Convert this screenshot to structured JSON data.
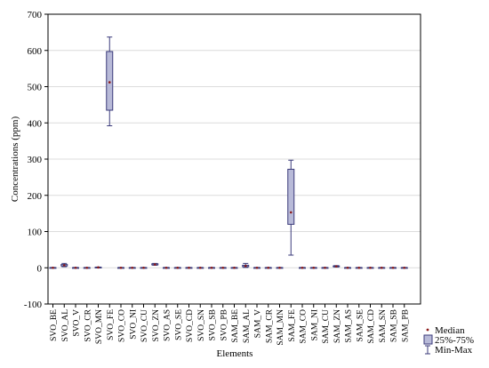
{
  "chart_data": {
    "type": "box",
    "xlabel": "Elements",
    "ylabel": "Concentrations (ppm)",
    "ylim": [
      -100,
      700
    ],
    "yticks": [
      -100,
      0,
      100,
      200,
      300,
      400,
      500,
      600,
      700
    ],
    "grid": true,
    "legend_position": "bottom-right",
    "legend": [
      {
        "key": "median",
        "label": "Median"
      },
      {
        "key": "box",
        "label": "25%-75%"
      },
      {
        "key": "whisker",
        "label": "Min-Max"
      }
    ],
    "colors": {
      "box_fill": "#b8bad8",
      "box_stroke": "#3a3a7a",
      "median": "#8b1a1a",
      "whisker": "#3a3a7a"
    },
    "categories": [
      "SVO_BE",
      "SVO_AL",
      "SVO_V",
      "SVO_CR",
      "SVO_MN",
      "SVO_FE",
      "SVO_CO",
      "SVO_NI",
      "SVO_CU",
      "SVO_ZN",
      "SVO_AS",
      "SVO_SE",
      "SVO_CD",
      "SVO_SN",
      "SVO_SB",
      "SVO_PB",
      "SAM_BE",
      "SAM_AL",
      "SAM_V",
      "SAM_CR",
      "SAM_MN",
      "SAM_FE",
      "SAM_CO",
      "SAM_NI",
      "SAM_CU",
      "SAM_ZN",
      "SAM_AS",
      "SAM_SE",
      "SAM_CD",
      "SAM_SN",
      "SAM_SB",
      "SAM_PB"
    ],
    "boxes": [
      {
        "min": 0,
        "q1": 0,
        "median": 0,
        "q3": 0.5,
        "max": 1
      },
      {
        "min": 3,
        "q1": 5,
        "median": 7,
        "q3": 9,
        "max": 12
      },
      {
        "min": 0,
        "q1": 0,
        "median": 0,
        "q3": 0.5,
        "max": 1
      },
      {
        "min": 0,
        "q1": 0,
        "median": 0,
        "q3": 0.5,
        "max": 1
      },
      {
        "min": 0,
        "q1": 0.5,
        "median": 1,
        "q3": 1.5,
        "max": 2
      },
      {
        "min": 392,
        "q1": 435,
        "median": 512,
        "q3": 597,
        "max": 637
      },
      {
        "min": 0,
        "q1": 0,
        "median": 0,
        "q3": 0.5,
        "max": 1
      },
      {
        "min": 0,
        "q1": 0,
        "median": 0,
        "q3": 0.5,
        "max": 1
      },
      {
        "min": 0,
        "q1": 0,
        "median": 0,
        "q3": 0.5,
        "max": 1
      },
      {
        "min": 7,
        "q1": 8,
        "median": 9,
        "q3": 11,
        "max": 12
      },
      {
        "min": 0,
        "q1": 0,
        "median": 0,
        "q3": 0.5,
        "max": 1
      },
      {
        "min": 0,
        "q1": 0,
        "median": 0,
        "q3": 0.5,
        "max": 1
      },
      {
        "min": 0,
        "q1": 0,
        "median": 0,
        "q3": 0.5,
        "max": 1
      },
      {
        "min": 0,
        "q1": 0,
        "median": 0,
        "q3": 0.5,
        "max": 1
      },
      {
        "min": 0,
        "q1": 0,
        "median": 0,
        "q3": 0.5,
        "max": 1
      },
      {
        "min": 0,
        "q1": 0,
        "median": 0,
        "q3": 0.5,
        "max": 1
      },
      {
        "min": 0,
        "q1": 0,
        "median": 0,
        "q3": 0.5,
        "max": 1
      },
      {
        "min": 1,
        "q1": 3,
        "median": 5,
        "q3": 7,
        "max": 12
      },
      {
        "min": 0,
        "q1": 0,
        "median": 0,
        "q3": 0.5,
        "max": 1
      },
      {
        "min": 0,
        "q1": 0,
        "median": 0,
        "q3": 0.5,
        "max": 1
      },
      {
        "min": 0,
        "q1": 0,
        "median": 0,
        "q3": 0.5,
        "max": 1
      },
      {
        "min": 35,
        "q1": 120,
        "median": 153,
        "q3": 272,
        "max": 297
      },
      {
        "min": 0,
        "q1": 0,
        "median": 0,
        "q3": 0.5,
        "max": 1
      },
      {
        "min": 0,
        "q1": 0,
        "median": 0,
        "q3": 0.5,
        "max": 1
      },
      {
        "min": 0,
        "q1": 0,
        "median": 0,
        "q3": 0.5,
        "max": 1
      },
      {
        "min": 2,
        "q1": 3,
        "median": 4,
        "q3": 5,
        "max": 6
      },
      {
        "min": 0,
        "q1": 0,
        "median": 0,
        "q3": 0.5,
        "max": 1
      },
      {
        "min": 0,
        "q1": 0,
        "median": 0,
        "q3": 0.5,
        "max": 1
      },
      {
        "min": 0,
        "q1": 0,
        "median": 0,
        "q3": 0.5,
        "max": 1
      },
      {
        "min": 0,
        "q1": 0,
        "median": 0,
        "q3": 0.5,
        "max": 1
      },
      {
        "min": 0,
        "q1": 0,
        "median": 0,
        "q3": 0.5,
        "max": 1
      },
      {
        "min": 0,
        "q1": 0,
        "median": 0,
        "q3": 0.5,
        "max": 1
      }
    ]
  }
}
